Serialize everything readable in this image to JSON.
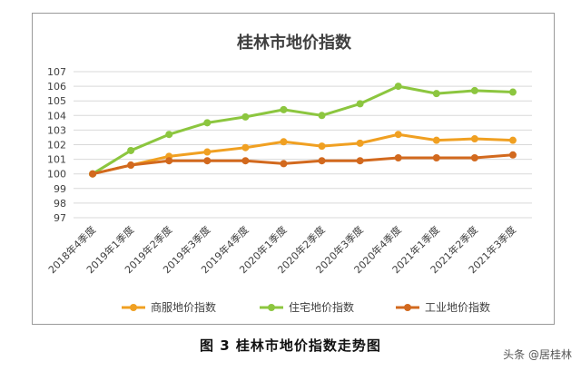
{
  "chart_data": {
    "type": "line",
    "title": "桂林市地价指数",
    "categories": [
      "2018年4季度",
      "2019年1季度",
      "2019年2季度",
      "2019年3季度",
      "2019年4季度",
      "2020年1季度",
      "2020年2季度",
      "2020年3季度",
      "2020年4季度",
      "2021年1季度",
      "2021年2季度",
      "2021年3季度"
    ],
    "series": [
      {
        "name": "商服地价指数",
        "color": "#f0a022",
        "values": [
          100.0,
          100.6,
          101.2,
          101.5,
          101.8,
          102.2,
          101.9,
          102.1,
          102.7,
          102.3,
          102.4,
          102.3
        ]
      },
      {
        "name": "住宅地价指数",
        "color": "#8cc63f",
        "values": [
          100.0,
          101.6,
          102.7,
          103.5,
          103.9,
          104.4,
          104.0,
          104.8,
          106.0,
          105.5,
          105.7,
          105.6
        ]
      },
      {
        "name": "工业地价指数",
        "color": "#d2691e",
        "values": [
          100.0,
          100.6,
          100.9,
          100.9,
          100.9,
          100.7,
          100.9,
          100.9,
          101.1,
          101.1,
          101.1,
          101.3
        ]
      }
    ],
    "ylim": [
      97,
      107
    ],
    "yticks": [
      97,
      98,
      99,
      100,
      101,
      102,
      103,
      104,
      105,
      106,
      107
    ],
    "grid": true,
    "legend_position": "bottom"
  },
  "caption": "图 3   桂林市地价指数走势图",
  "watermark": "头条 @居桂林"
}
